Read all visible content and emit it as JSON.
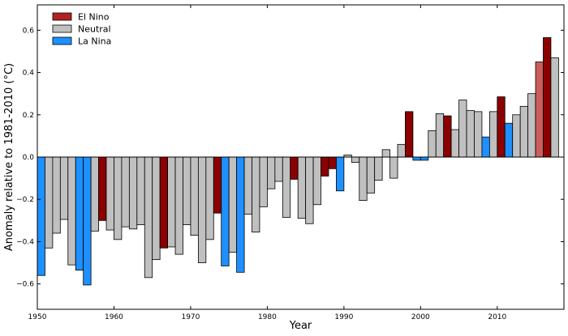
{
  "chart_data": {
    "type": "bar",
    "xlabel": "Year",
    "ylabel": "Anomaly relative to 1981-2010 (°C)",
    "xlim": [
      1950,
      2018.7
    ],
    "ylim": [
      -0.72,
      0.72
    ],
    "xticks": [
      1950,
      1960,
      1970,
      1980,
      1990,
      2000,
      2010
    ],
    "yticks": [
      -0.6,
      -0.4,
      -0.2,
      0.0,
      0.2,
      0.4,
      0.6
    ],
    "ytick_labels": [
      "−0.6",
      "−0.4",
      "−0.2",
      "0.0",
      "0.2",
      "0.4",
      "0.6"
    ],
    "grid": false,
    "legend_position": "top-left",
    "categories_legend": [
      {
        "key": "el_nino",
        "label": "El Nino",
        "color": "#b22222"
      },
      {
        "key": "neutral",
        "label": "Neutral",
        "color": "#c0c0c0"
      },
      {
        "key": "la_nina",
        "label": "La Nina",
        "color": "#1e90ff"
      }
    ],
    "colors": {
      "el_nino": "#8b0000",
      "el_nino_light": "#cd5c5c",
      "neutral": "#c0c0c0",
      "la_nina": "#1e90ff"
    },
    "years": [
      1950,
      1951,
      1952,
      1953,
      1954,
      1955,
      1956,
      1957,
      1958,
      1959,
      1960,
      1961,
      1962,
      1963,
      1964,
      1965,
      1966,
      1967,
      1968,
      1969,
      1970,
      1971,
      1972,
      1973,
      1974,
      1975,
      1976,
      1977,
      1978,
      1979,
      1980,
      1981,
      1982,
      1983,
      1984,
      1985,
      1986,
      1987,
      1988,
      1989,
      1990,
      1991,
      1992,
      1993,
      1994,
      1995,
      1996,
      1997,
      1998,
      1999,
      2000,
      2001,
      2002,
      2003,
      2004,
      2005,
      2006,
      2007,
      2008,
      2009,
      2010,
      2011,
      2012,
      2013,
      2014,
      2015,
      2016,
      2017
    ],
    "values": [
      -0.56,
      -0.43,
      -0.36,
      -0.295,
      -0.51,
      -0.535,
      -0.605,
      -0.35,
      -0.3,
      -0.345,
      -0.39,
      -0.33,
      -0.34,
      -0.32,
      -0.57,
      -0.485,
      -0.43,
      -0.425,
      -0.46,
      -0.32,
      -0.37,
      -0.5,
      -0.39,
      -0.265,
      -0.515,
      -0.45,
      -0.545,
      -0.27,
      -0.355,
      -0.235,
      -0.15,
      -0.115,
      -0.285,
      -0.105,
      -0.29,
      -0.315,
      -0.225,
      -0.09,
      -0.055,
      -0.16,
      0.01,
      -0.025,
      -0.205,
      -0.17,
      -0.11,
      0.035,
      -0.1,
      0.06,
      0.215,
      -0.015,
      -0.015,
      0.125,
      0.205,
      0.195,
      0.13,
      0.27,
      0.22,
      0.215,
      0.095,
      0.215,
      0.285,
      0.16,
      0.2,
      0.24,
      0.3,
      0.45,
      0.565,
      0.47
    ],
    "enso": [
      "la_nina",
      "neutral",
      "neutral",
      "neutral",
      "neutral",
      "la_nina",
      "la_nina",
      "neutral",
      "el_nino",
      "neutral",
      "neutral",
      "neutral",
      "neutral",
      "neutral",
      "neutral",
      "neutral",
      "el_nino",
      "neutral",
      "neutral",
      "neutral",
      "neutral",
      "neutral",
      "neutral",
      "el_nino",
      "la_nina",
      "neutral",
      "la_nina",
      "neutral",
      "neutral",
      "neutral",
      "neutral",
      "neutral",
      "neutral",
      "el_nino",
      "neutral",
      "neutral",
      "neutral",
      "el_nino",
      "el_nino",
      "la_nina",
      "neutral",
      "neutral",
      "neutral",
      "neutral",
      "neutral",
      "neutral",
      "neutral",
      "neutral",
      "el_nino",
      "la_nina",
      "la_nina",
      "neutral",
      "neutral",
      "el_nino",
      "neutral",
      "neutral",
      "neutral",
      "neutral",
      "la_nina",
      "neutral",
      "el_nino",
      "la_nina",
      "neutral",
      "neutral",
      "neutral",
      "el_nino_light",
      "el_nino",
      "neutral"
    ]
  }
}
